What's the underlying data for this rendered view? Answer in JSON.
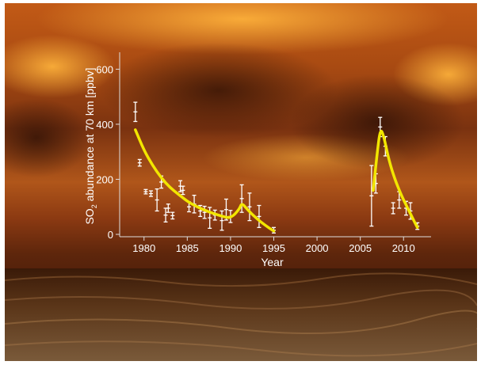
{
  "chart_data": {
    "type": "scatter",
    "title": "",
    "xlabel": "Year",
    "ylabel_parts": [
      "SO",
      "2",
      " abundance at 70 km [ppbv]"
    ],
    "xlim": [
      1977,
      2013
    ],
    "ylim": [
      0,
      650
    ],
    "x_ticks": [
      1980,
      1985,
      1990,
      1995,
      2000,
      2005,
      2010
    ],
    "y_ticks": [
      0,
      200,
      400,
      600
    ],
    "grid": false,
    "legend": "none",
    "colors": {
      "fit": "#f2e600",
      "points": "#ffffff",
      "axes": "#dddddd"
    },
    "series": [
      {
        "type": "errorbar",
        "points": [
          {
            "x": 1979.0,
            "y": 445,
            "err": 35
          },
          {
            "x": 1979.5,
            "y": 260,
            "err": 12
          },
          {
            "x": 1980.2,
            "y": 155,
            "err": 8
          },
          {
            "x": 1980.8,
            "y": 148,
            "err": 10
          },
          {
            "x": 1981.5,
            "y": 125,
            "err": 40
          },
          {
            "x": 1982.0,
            "y": 190,
            "err": 22
          },
          {
            "x": 1982.5,
            "y": 70,
            "err": 25
          },
          {
            "x": 1982.8,
            "y": 95,
            "err": 15
          },
          {
            "x": 1983.3,
            "y": 68,
            "err": 12
          },
          {
            "x": 1984.2,
            "y": 175,
            "err": 20
          },
          {
            "x": 1984.5,
            "y": 160,
            "err": 15
          },
          {
            "x": 1985.2,
            "y": 100,
            "err": 18
          },
          {
            "x": 1985.8,
            "y": 110,
            "err": 32
          },
          {
            "x": 1986.5,
            "y": 85,
            "err": 20
          },
          {
            "x": 1987.0,
            "y": 80,
            "err": 22
          },
          {
            "x": 1987.6,
            "y": 60,
            "err": 38
          },
          {
            "x": 1988.2,
            "y": 70,
            "err": 18
          },
          {
            "x": 1989.0,
            "y": 50,
            "err": 35
          },
          {
            "x": 1989.5,
            "y": 90,
            "err": 38
          },
          {
            "x": 1990.0,
            "y": 65,
            "err": 22
          },
          {
            "x": 1991.3,
            "y": 130,
            "err": 50
          },
          {
            "x": 1992.2,
            "y": 100,
            "err": 50
          },
          {
            "x": 1993.3,
            "y": 65,
            "err": 40
          },
          {
            "x": 1995.0,
            "y": 15,
            "err": 10
          },
          {
            "x": 2006.3,
            "y": 140,
            "err": 110
          },
          {
            "x": 2006.8,
            "y": 185,
            "err": 35
          },
          {
            "x": 2007.3,
            "y": 390,
            "err": 35
          },
          {
            "x": 2007.9,
            "y": 320,
            "err": 35
          },
          {
            "x": 2008.8,
            "y": 95,
            "err": 20
          },
          {
            "x": 2009.5,
            "y": 125,
            "err": 30
          },
          {
            "x": 2010.3,
            "y": 95,
            "err": 25
          },
          {
            "x": 2010.8,
            "y": 85,
            "err": 30
          },
          {
            "x": 2011.6,
            "y": 30,
            "err": 12
          }
        ]
      },
      {
        "type": "line",
        "segments": [
          [
            [
              1979.0,
              380
            ],
            [
              1980.0,
              305
            ],
            [
              1981.0,
              250
            ],
            [
              1982.0,
              205
            ],
            [
              1983.0,
              170
            ],
            [
              1984.0,
              145
            ],
            [
              1985.0,
              120
            ],
            [
              1986.0,
              102
            ],
            [
              1987.0,
              88
            ],
            [
              1988.0,
              76
            ],
            [
              1989.0,
              66
            ],
            [
              1990.0,
              58
            ],
            [
              1991.0,
              90
            ],
            [
              1991.3,
              115
            ],
            [
              1992.0,
              88
            ],
            [
              1993.0,
              58
            ],
            [
              1994.0,
              33
            ],
            [
              1995.0,
              12
            ]
          ],
          [
            [
              2006.5,
              160
            ],
            [
              2006.9,
              280
            ],
            [
              2007.3,
              385
            ],
            [
              2007.7,
              360
            ],
            [
              2008.3,
              270
            ],
            [
              2009.0,
              200
            ],
            [
              2009.7,
              145
            ],
            [
              2010.4,
              100
            ],
            [
              2011.0,
              62
            ],
            [
              2011.6,
              25
            ]
          ]
        ]
      }
    ]
  }
}
